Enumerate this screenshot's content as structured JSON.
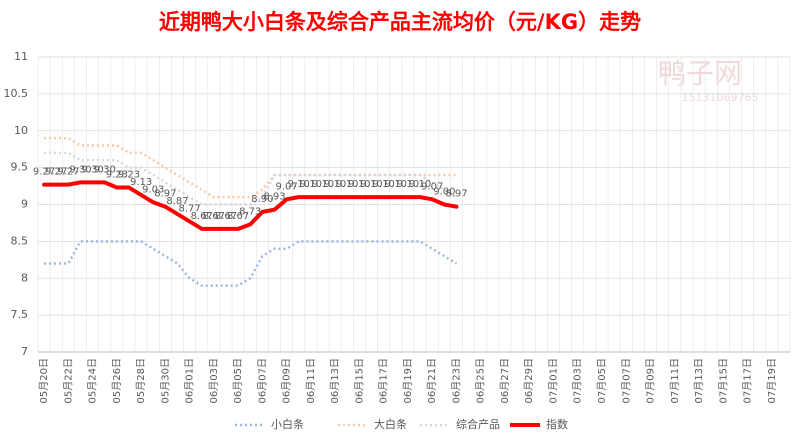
{
  "chart_data": {
    "type": "line",
    "title": "近期鸭大小白条及综合产品主流均价（元/KG）走势",
    "annotations": [
      "鸭子网",
      "15131069765"
    ],
    "categories": [
      "05月20日",
      null,
      "05月22日",
      null,
      "05月24日",
      null,
      "05月26日",
      null,
      "05月28日",
      null,
      "05月30日",
      null,
      "06月01日",
      null,
      "06月03日",
      null,
      "06月05日",
      null,
      "06月07日",
      null,
      "06月09日",
      null,
      "06月11日",
      null,
      "06月13日",
      null,
      "06月15日",
      null,
      "06月17日",
      null,
      "06月19日",
      null,
      "06月21日",
      null,
      "06月23日",
      null,
      "06月25日",
      null,
      "06月27日",
      null,
      "06月29日",
      null,
      "07月01日",
      null,
      "07月03日",
      null,
      "07月05日",
      null,
      "07月07日",
      null,
      "07月09日",
      null,
      "07月11日",
      null,
      "07月13日",
      null,
      "07月15日",
      null,
      "07月17日",
      null,
      "07月19日",
      null
    ],
    "ylim": [
      7,
      11
    ],
    "yticks": [
      7,
      7.5,
      8,
      8.5,
      9,
      9.5,
      10,
      10.5,
      11
    ],
    "grid": true,
    "legend": "bottom",
    "series": [
      {
        "name": "小白条",
        "color": "#9db8e0",
        "style": "dotted",
        "values": [
          8.2,
          8.2,
          8.2,
          8.5,
          8.5,
          8.5,
          8.5,
          8.5,
          8.5,
          8.4,
          8.3,
          8.2,
          8.0,
          7.9,
          7.9,
          7.9,
          7.9,
          8.0,
          8.3,
          8.4,
          8.4,
          8.5,
          8.5,
          8.5,
          8.5,
          8.5,
          8.5,
          8.5,
          8.5,
          8.5,
          8.5,
          8.5,
          8.4,
          8.3,
          8.2,
          null,
          null,
          null,
          null,
          null,
          null,
          null,
          null,
          null,
          null,
          null,
          null,
          null,
          null,
          null,
          null,
          null,
          null,
          null,
          null,
          null,
          null,
          null,
          null,
          null,
          null,
          null
        ]
      },
      {
        "name": "大白条",
        "color": "#f8c9a8",
        "style": "dotted",
        "values": [
          9.9,
          9.9,
          9.9,
          9.8,
          9.8,
          9.8,
          9.8,
          9.7,
          9.7,
          9.6,
          9.5,
          9.4,
          9.3,
          9.2,
          9.1,
          9.1,
          9.1,
          9.1,
          9.2,
          9.4,
          9.4,
          9.4,
          9.4,
          9.4,
          9.4,
          9.4,
          9.4,
          9.4,
          9.4,
          9.4,
          9.4,
          9.4,
          9.4,
          9.4,
          9.4,
          null,
          null,
          null,
          null,
          null,
          null,
          null,
          null,
          null,
          null,
          null,
          null,
          null,
          null,
          null,
          null,
          null,
          null,
          null,
          null,
          null,
          null,
          null,
          null,
          null,
          null,
          null
        ]
      },
      {
        "name": "综合产品",
        "color": "#d3d9e2",
        "style": "dotted",
        "values": [
          9.7,
          9.7,
          9.7,
          9.6,
          9.6,
          9.6,
          9.6,
          9.5,
          9.5,
          9.4,
          9.3,
          9.2,
          9.1,
          9.0,
          9.0,
          9.0,
          9.0,
          9.0,
          9.1,
          9.4,
          9.4,
          9.4,
          9.4,
          9.4,
          9.4,
          9.4,
          9.4,
          9.4,
          9.4,
          9.4,
          9.4,
          9.4,
          9.3,
          9.2,
          9.1,
          null,
          null,
          null,
          null,
          null,
          null,
          null,
          null,
          null,
          null,
          null,
          null,
          null,
          null,
          null,
          null,
          null,
          null,
          null,
          null,
          null,
          null,
          null,
          null,
          null,
          null,
          null
        ]
      },
      {
        "name": "指数",
        "color": "#ff0000",
        "style": "solid",
        "values": [
          9.27,
          9.27,
          9.27,
          9.3,
          9.3,
          9.3,
          9.23,
          9.23,
          9.13,
          9.03,
          8.97,
          8.87,
          8.77,
          8.67,
          8.67,
          8.67,
          8.67,
          8.73,
          8.9,
          8.93,
          9.07,
          9.1,
          9.1,
          9.1,
          9.1,
          9.1,
          9.1,
          9.1,
          9.1,
          9.1,
          9.1,
          9.1,
          9.07,
          9.0,
          8.97,
          null,
          null,
          null,
          null,
          null,
          null,
          null,
          null,
          null,
          null,
          null,
          null,
          null,
          null,
          null,
          null,
          null,
          null,
          null,
          null,
          null,
          null,
          null,
          null,
          null,
          null,
          null
        ],
        "value_labels": [
          "9.27",
          "9.27",
          "9.27",
          "9.30",
          "9.30",
          "9.30",
          "9.23",
          "9.23",
          "9.13",
          "9.03",
          "8.97",
          "8.87",
          "8.77",
          "8.67",
          "8.67",
          "8.67",
          "8.67",
          "8.73",
          "8.90",
          "8.93",
          "9.07",
          "9.10",
          "9.10",
          "9.10",
          "9.10",
          "9.10",
          "9.10",
          "9.10",
          "9.10",
          "9.10",
          "9.10",
          "9.10",
          "9.07",
          "9.00",
          "8.97",
          null,
          null,
          null,
          null,
          null,
          null,
          null,
          null,
          null,
          null,
          null,
          null,
          null,
          null,
          null,
          null,
          null,
          null,
          null,
          null,
          null,
          null,
          null,
          null,
          null,
          null,
          null
        ]
      }
    ]
  }
}
